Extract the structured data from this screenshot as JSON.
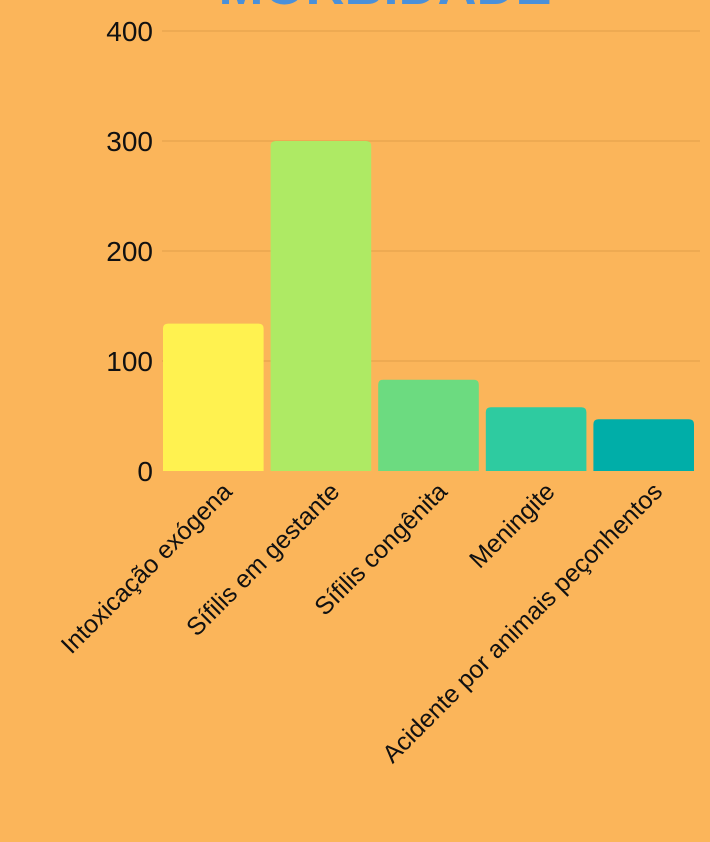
{
  "chart_data": {
    "type": "bar",
    "title": "MORBIDADE",
    "xlabel": "",
    "ylabel": "",
    "categories": [
      "Intoxicação exógena",
      "Sífilis em gestante",
      "Sífilis congênita",
      "Meningite",
      "Acidente por animais peçonhentos"
    ],
    "values": [
      134,
      300,
      83,
      58,
      47
    ],
    "ylim": [
      0,
      400
    ],
    "yticks": [
      0,
      100,
      200,
      300,
      400
    ],
    "grid": true,
    "legend": "none"
  },
  "colors": {
    "background": "#FBB55A",
    "title": "#4A90D9",
    "grid": "#E0A04A",
    "bars": [
      "#FFF250",
      "#AEEA64",
      "#6CDB80",
      "#2ECBA0",
      "#00AEA8"
    ]
  }
}
